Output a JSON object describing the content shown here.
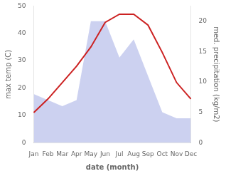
{
  "chart_data": {
    "type": "line",
    "xlabel": "date (month)",
    "ylabel": "max temp (C)",
    "y2label": "med. precipitation (kg/m2)",
    "categories": [
      "Jan",
      "Feb",
      "Mar",
      "Apr",
      "May",
      "Jun",
      "Jul",
      "Aug",
      "Sep",
      "Oct",
      "Nov",
      "Dec"
    ],
    "series": [
      {
        "type": "area",
        "color": "#b0b8e8",
        "axis": "y2",
        "values": [
          8,
          7,
          6,
          7,
          20,
          20,
          14,
          17,
          11,
          5,
          4,
          4
        ]
      },
      {
        "type": "line",
        "color": "#cc2222",
        "values": [
          11,
          16,
          22,
          28,
          35,
          44,
          47,
          47,
          43,
          33,
          22,
          16
        ]
      }
    ],
    "ylim": [
      0,
      50
    ],
    "yticks": [
      0,
      10,
      20,
      30,
      40,
      50
    ],
    "y2lim": [
      0,
      22.5
    ],
    "y2ticks": [
      0,
      5,
      10,
      15,
      20
    ],
    "grid": false
  }
}
